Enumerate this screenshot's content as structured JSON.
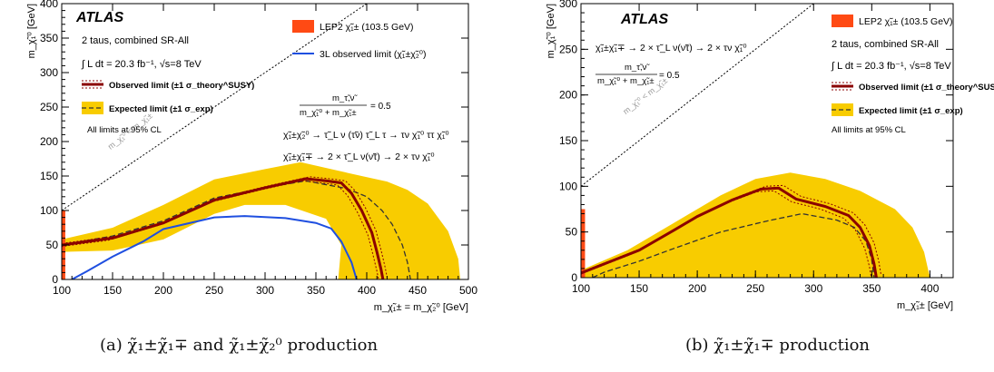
{
  "panel_a": {
    "experiment": "ATLAS",
    "header_lines": [
      "2 taus, combined SR-All",
      "∫ L dt = 20.3 fb⁻¹, √s=8 TeV"
    ],
    "ylabel": "m_χ̃₁⁰ [GeV]",
    "xlabel": "m_χ̃₁± = m_χ̃₂⁰ [GeV]",
    "diag_label": "m_χ̃₁⁰ < m_χ̃₁±",
    "relation_num": "m_τ̃,ν̃",
    "relation_den": "m_χ̃₁⁰ + m_χ̃₁±",
    "relation_val": "= 0.5",
    "process_1": "χ̃₁±χ̃₂⁰ → τ̃_L ν (τ̃ν) τ̃_L τ → τν χ̃₁⁰ ττ χ̃₁⁰",
    "process_2": "χ̃₁±χ̃₁∓ → 2 × τ̃_L ν(ν̃τ) → 2 × τν χ̃₁⁰",
    "cl_note": "All limits at 95% CL",
    "legend": {
      "lep": "LEP2 χ̃₁± (103.5 GeV)",
      "threel": "3L observed limit (χ̃₁±χ̃₂⁰)",
      "obs": "Observed limit (±1 σ_theory^SUSY)",
      "exp": "Expected limit (±1 σ_exp)"
    },
    "caption": "(a)  χ̃₁±χ̃₁∓ and χ̃₁±χ̃₂⁰ production"
  },
  "panel_b": {
    "experiment": "ATLAS",
    "process": "χ̃₁±χ̃₁∓ → 2 × τ̃_L ν(ν̃τ) → 2 × τν χ̃₁⁰",
    "relation_num": "m_τ̃,ν̃",
    "relation_den": "m_χ̃₁⁰ + m_χ̃₁±",
    "relation_val": "= 0.5",
    "header_lines": [
      "2 taus, combined SR-All",
      "∫ L dt = 20.3 fb⁻¹, √s=8 TeV"
    ],
    "ylabel": "m_χ̃₁⁰ [GeV]",
    "xlabel": "m_χ̃₁± [GeV]",
    "diag_label": "m_χ̃₁⁰ < m_χ̃₁±",
    "cl_note": "All limits at 95% CL",
    "legend": {
      "lep": "LEP2 χ̃₁± (103.5 GeV)",
      "obs": "Observed limit (±1 σ_theory^SUSY)",
      "exp": "Expected limit (±1 σ_exp)"
    },
    "caption": "(b)  χ̃₁±χ̃₁∓ production"
  },
  "colors": {
    "band": "#f8cc00",
    "observed": "#8b0000",
    "lep": "#ff4a14",
    "threel": "#1f4fe0",
    "expected": "#333333"
  },
  "chart_data": [
    {
      "type": "line",
      "x_unit": "GeV",
      "y_unit": "GeV",
      "xlim": [
        100,
        500
      ],
      "ylim": [
        0,
        400
      ],
      "xticks": [
        100,
        150,
        200,
        250,
        300,
        350,
        400,
        450,
        500
      ],
      "yticks": [
        0,
        50,
        100,
        150,
        200,
        250,
        300,
        350,
        400
      ],
      "lep_limit": 103.5,
      "observed": [
        [
          100,
          50
        ],
        [
          150,
          60
        ],
        [
          200,
          82
        ],
        [
          250,
          115
        ],
        [
          300,
          133
        ],
        [
          340,
          146
        ],
        [
          360,
          143
        ],
        [
          375,
          140
        ],
        [
          385,
          125
        ],
        [
          395,
          100
        ],
        [
          405,
          68
        ],
        [
          410,
          40
        ],
        [
          414,
          15
        ],
        [
          416,
          0
        ]
      ],
      "expected": [
        [
          100,
          50
        ],
        [
          150,
          63
        ],
        [
          200,
          85
        ],
        [
          250,
          118
        ],
        [
          300,
          133
        ],
        [
          340,
          143
        ],
        [
          380,
          132
        ],
        [
          400,
          120
        ],
        [
          415,
          100
        ],
        [
          425,
          80
        ],
        [
          435,
          50
        ],
        [
          440,
          25
        ],
        [
          443,
          0
        ]
      ],
      "expected_band": [
        [
          100,
          58
        ],
        [
          150,
          75
        ],
        [
          200,
          108
        ],
        [
          250,
          145
        ],
        [
          300,
          160
        ],
        [
          335,
          170
        ],
        [
          365,
          160
        ],
        [
          395,
          150
        ],
        [
          420,
          142
        ],
        [
          440,
          130
        ],
        [
          460,
          110
        ],
        [
          480,
          70
        ],
        [
          490,
          30
        ],
        [
          492,
          0
        ],
        [
          372,
          0
        ],
        [
          375,
          50
        ],
        [
          360,
          88
        ],
        [
          320,
          108
        ],
        [
          280,
          108
        ],
        [
          250,
          95
        ],
        [
          200,
          58
        ],
        [
          150,
          42
        ],
        [
          100,
          40
        ]
      ],
      "threel_observed": [
        [
          110,
          0
        ],
        [
          125,
          12
        ],
        [
          150,
          33
        ],
        [
          180,
          55
        ],
        [
          200,
          73
        ],
        [
          250,
          90
        ],
        [
          280,
          92
        ],
        [
          320,
          89
        ],
        [
          350,
          82
        ],
        [
          365,
          74
        ],
        [
          375,
          55
        ],
        [
          385,
          25
        ],
        [
          390,
          0
        ]
      ]
    },
    {
      "type": "line",
      "x_unit": "GeV",
      "y_unit": "GeV",
      "xlim": [
        100,
        420
      ],
      "ylim": [
        0,
        300
      ],
      "xticks": [
        100,
        150,
        200,
        250,
        300,
        350,
        400
      ],
      "yticks": [
        0,
        50,
        100,
        150,
        200,
        250,
        300
      ],
      "lep_limit": 103.5,
      "observed": [
        [
          100,
          5
        ],
        [
          120,
          15
        ],
        [
          150,
          30
        ],
        [
          180,
          52
        ],
        [
          200,
          67
        ],
        [
          230,
          85
        ],
        [
          255,
          97
        ],
        [
          270,
          98
        ],
        [
          285,
          86
        ],
        [
          310,
          78
        ],
        [
          330,
          68
        ],
        [
          340,
          55
        ],
        [
          348,
          35
        ],
        [
          352,
          15
        ],
        [
          354,
          0
        ]
      ],
      "expected": [
        [
          110,
          0
        ],
        [
          120,
          6
        ],
        [
          150,
          18
        ],
        [
          180,
          32
        ],
        [
          220,
          50
        ],
        [
          260,
          62
        ],
        [
          290,
          70
        ],
        [
          320,
          63
        ],
        [
          335,
          55
        ],
        [
          345,
          40
        ],
        [
          350,
          20
        ],
        [
          352,
          0
        ]
      ],
      "expected_band": [
        [
          100,
          8
        ],
        [
          140,
          30
        ],
        [
          180,
          60
        ],
        [
          220,
          90
        ],
        [
          250,
          108
        ],
        [
          280,
          115
        ],
        [
          310,
          108
        ],
        [
          340,
          95
        ],
        [
          370,
          75
        ],
        [
          385,
          55
        ],
        [
          395,
          28
        ],
        [
          400,
          0
        ],
        [
          210,
          0
        ],
        [
          230,
          15
        ],
        [
          260,
          28
        ],
        [
          300,
          35
        ],
        [
          322,
          30
        ],
        [
          335,
          20
        ],
        [
          340,
          0
        ],
        [
          100,
          0
        ]
      ]
    }
  ]
}
